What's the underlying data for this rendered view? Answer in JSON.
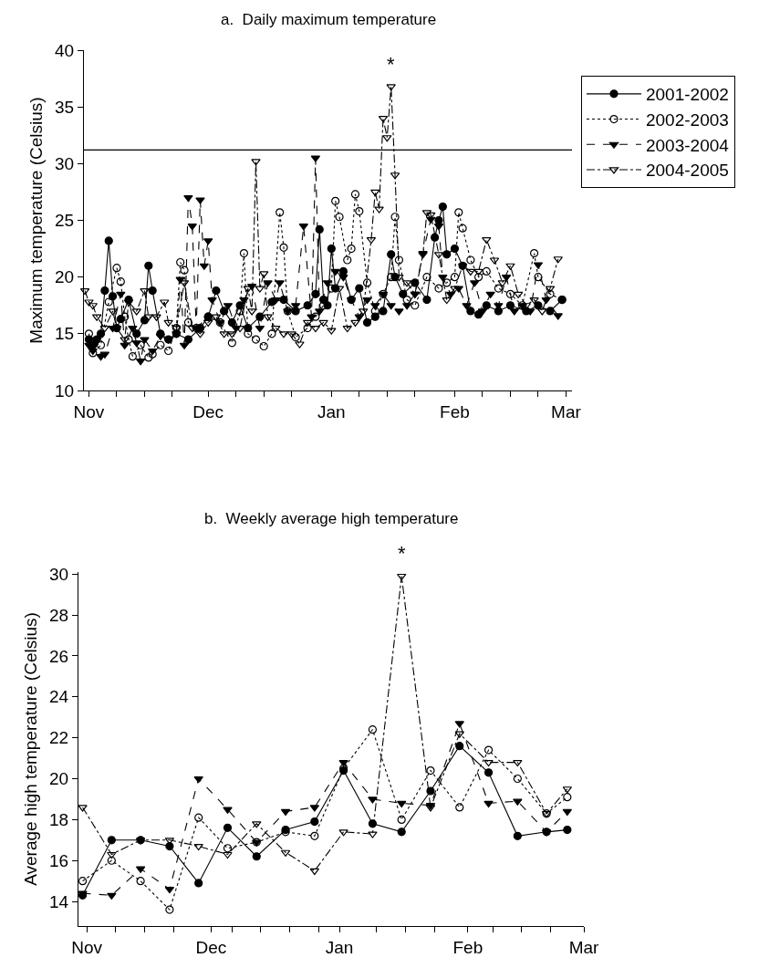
{
  "chart_data": [
    {
      "type": "line",
      "title": "a.  Daily maximum temperature",
      "ylabel": "Maximum temperature (Celsius)",
      "xlim": [
        "2000-10-30T18:00",
        "2001-03-02T12:00"
      ],
      "xticks": [
        {
          "value": "2000-11-01",
          "label": "Nov"
        },
        {
          "value": "2000-11-08",
          "label": null
        },
        {
          "value": "2000-11-15",
          "label": null
        },
        {
          "value": "2000-11-22",
          "label": null
        },
        {
          "value": "2000-12-01",
          "label": "Dec"
        },
        {
          "value": "2000-12-08",
          "label": null
        },
        {
          "value": "2000-12-15",
          "label": null
        },
        {
          "value": "2000-12-22",
          "label": null
        },
        {
          "value": "2001-01-01",
          "label": "Jan"
        },
        {
          "value": "2001-01-08",
          "label": null
        },
        {
          "value": "2001-01-15",
          "label": null
        },
        {
          "value": "2001-01-22",
          "label": null
        },
        {
          "value": "2001-02-01",
          "label": "Feb"
        },
        {
          "value": "2001-02-08",
          "label": null
        },
        {
          "value": "2001-02-15",
          "label": null
        },
        {
          "value": "2001-02-22",
          "label": null
        },
        {
          "value": "2001-03-01",
          "label": "Mar"
        }
      ],
      "ylim": [
        10,
        40
      ],
      "yticks": [
        10,
        15,
        20,
        25,
        30,
        35,
        40
      ],
      "grid": false,
      "legend": "top right",
      "ref_lines": [
        {
          "axis": "y",
          "value": 31.2,
          "color": "#000000",
          "line_style": "solid"
        }
      ],
      "annotations": [
        "*"
      ],
      "series": [
        {
          "name": "2001-2002",
          "color": "#000000",
          "marker": "circle",
          "line_style": "solid",
          "x": [
            "2000-11-01",
            "2000-11-02",
            "2000-11-03",
            "2000-11-04",
            "2000-11-05",
            "2000-11-06",
            "2000-11-07",
            "2000-11-08",
            "2000-11-09",
            "2000-11-11",
            "2000-11-13",
            "2000-11-15",
            "2000-11-16",
            "2000-11-17",
            "2000-11-19",
            "2000-11-21",
            "2000-11-23",
            "2000-11-26",
            "2000-11-29",
            "2000-12-01",
            "2000-12-03",
            "2000-12-05",
            "2000-12-07",
            "2000-12-09",
            "2000-12-11",
            "2000-12-14",
            "2000-12-17",
            "2000-12-20",
            "2000-12-23",
            "2000-12-26",
            "2000-12-28",
            "2000-12-29",
            "2000-12-30",
            "2000-12-31",
            "2001-01-01",
            "2001-01-02",
            "2001-01-04",
            "2001-01-06",
            "2001-01-08",
            "2001-01-10",
            "2001-01-12",
            "2001-01-14",
            "2001-01-16",
            "2001-01-17",
            "2001-01-19",
            "2001-01-22",
            "2001-01-25",
            "2001-01-27",
            "2001-01-28",
            "2001-01-29",
            "2001-01-30",
            "2001-02-01",
            "2001-02-03",
            "2001-02-05",
            "2001-02-07",
            "2001-02-09",
            "2001-02-12",
            "2001-02-15",
            "2001-02-19",
            "2001-02-22",
            "2001-02-25",
            "2001-02-28"
          ],
          "values": [
            14.5,
            14.0,
            14.5,
            15.0,
            18.8,
            23.2,
            18.3,
            15.5,
            16.3,
            18.0,
            15.0,
            16.2,
            21.0,
            18.8,
            15.0,
            14.5,
            15.0,
            14.5,
            15.5,
            16.5,
            18.8,
            17.0,
            16.0,
            17.5,
            15.5,
            16.5,
            17.8,
            18.0,
            17.0,
            17.5,
            18.5,
            24.2,
            18.0,
            17.5,
            22.5,
            19.0,
            20.5,
            18.0,
            19.0,
            16.0,
            16.5,
            17.0,
            22.0,
            20.0,
            18.5,
            19.5,
            18.0,
            23.5,
            25.0,
            26.2,
            22.0,
            22.5,
            21.0,
            17.0,
            16.7,
            17.5,
            17.0,
            17.5,
            17.0,
            17.5,
            17.0,
            18.0
          ]
        },
        {
          "name": "2002-2003",
          "color": "#000000",
          "marker": "circle-open",
          "line_style": "dotted",
          "x": [
            "2000-11-01",
            "2000-11-02",
            "2000-11-04",
            "2000-11-06",
            "2000-11-08",
            "2000-11-09",
            "2000-11-10",
            "2000-11-11",
            "2000-11-12",
            "2000-11-14",
            "2000-11-16",
            "2000-11-17",
            "2000-11-19",
            "2000-11-21",
            "2000-11-23",
            "2000-11-24",
            "2000-11-25",
            "2000-11-26",
            "2000-11-28",
            "2000-12-01",
            "2000-12-04",
            "2000-12-07",
            "2000-12-09",
            "2000-12-10",
            "2000-12-11",
            "2000-12-13",
            "2000-12-15",
            "2000-12-17",
            "2000-12-19",
            "2000-12-20",
            "2000-12-21",
            "2000-12-23",
            "2000-12-26",
            "2000-12-28",
            "2000-12-30",
            "2001-01-01",
            "2001-01-02",
            "2001-01-03",
            "2001-01-05",
            "2001-01-06",
            "2001-01-07",
            "2001-01-08",
            "2001-01-10",
            "2001-01-12",
            "2001-01-14",
            "2001-01-16",
            "2001-01-17",
            "2001-01-18",
            "2001-01-20",
            "2001-01-22",
            "2001-01-25",
            "2001-01-28",
            "2001-01-30",
            "2001-02-01",
            "2001-02-02",
            "2001-02-03",
            "2001-02-05",
            "2001-02-07",
            "2001-02-09",
            "2001-02-12",
            "2001-02-15",
            "2001-02-18",
            "2001-02-21",
            "2001-02-22",
            "2001-02-25",
            "2001-02-28"
          ],
          "values": [
            15.0,
            13.3,
            14.0,
            17.8,
            20.8,
            19.6,
            16.5,
            14.5,
            13.0,
            14.0,
            12.9,
            13.2,
            14.0,
            13.5,
            15.5,
            21.3,
            20.6,
            16.0,
            15.5,
            16.5,
            16.0,
            14.2,
            17.0,
            22.1,
            15.0,
            14.5,
            13.9,
            15.0,
            25.7,
            22.6,
            17.0,
            14.7,
            15.5,
            16.5,
            17.5,
            19.0,
            26.7,
            25.3,
            21.5,
            22.5,
            27.3,
            25.8,
            19.5,
            17.0,
            18.5,
            20.0,
            25.3,
            21.5,
            18.0,
            17.5,
            20.0,
            19.0,
            19.5,
            20.0,
            25.7,
            24.3,
            21.5,
            20.0,
            20.5,
            19.0,
            18.5,
            17.5,
            22.1,
            20.0,
            18.5,
            18.0
          ]
        },
        {
          "name": "2003-2004",
          "color": "#000000",
          "marker": "triangle-down",
          "line_style": "dashed",
          "x": [
            "2000-11-01",
            "2000-11-02",
            "2000-11-03",
            "2000-11-04",
            "2000-11-05",
            "2000-11-07",
            "2000-11-09",
            "2000-11-10",
            "2000-11-12",
            "2000-11-13",
            "2000-11-14",
            "2000-11-15",
            "2000-11-17",
            "2000-11-19",
            "2000-11-21",
            "2000-11-23",
            "2000-11-24",
            "2000-11-25",
            "2000-11-26",
            "2000-11-27",
            "2000-11-28",
            "2000-11-29",
            "2000-11-30",
            "2000-12-01",
            "2000-12-02",
            "2000-12-04",
            "2000-12-06",
            "2000-12-08",
            "2000-12-10",
            "2000-12-12",
            "2000-12-14",
            "2000-12-16",
            "2000-12-18",
            "2000-12-19",
            "2000-12-21",
            "2000-12-23",
            "2000-12-25",
            "2000-12-27",
            "2000-12-28",
            "2000-12-29",
            "2000-12-31",
            "2001-01-02",
            "2001-01-04",
            "2001-01-06",
            "2001-01-08",
            "2001-01-10",
            "2001-01-12",
            "2001-01-14",
            "2001-01-16",
            "2001-01-18",
            "2001-01-20",
            "2001-01-22",
            "2001-01-24",
            "2001-01-26",
            "2001-01-28",
            "2001-01-29",
            "2001-01-31",
            "2001-02-02",
            "2001-02-04",
            "2001-02-06",
            "2001-02-08",
            "2001-02-10",
            "2001-02-12",
            "2001-02-14",
            "2001-02-16",
            "2001-02-18",
            "2001-02-20",
            "2001-02-22",
            "2001-02-24",
            "2001-02-27"
          ],
          "values": [
            14.0,
            13.5,
            14.5,
            13.0,
            13.2,
            15.5,
            18.5,
            14.0,
            15.5,
            14.2,
            12.6,
            14.5,
            13.5,
            14.8,
            14.5,
            15.0,
            19.8,
            14.0,
            27.0,
            24.5,
            15.5,
            26.8,
            21.0,
            23.2,
            18.0,
            16.0,
            17.5,
            15.5,
            18.0,
            19.2,
            15.5,
            19.5,
            18.0,
            19.5,
            17.0,
            17.5,
            24.5,
            16.5,
            30.5,
            17.0,
            19.5,
            20.5,
            20.0,
            18.0,
            16.5,
            18.0,
            17.5,
            18.5,
            17.5,
            17.0,
            17.5,
            18.5,
            22.1,
            25.1,
            24.5,
            20.0,
            18.5,
            19.0,
            17.5,
            19.5,
            17.0,
            18.5,
            17.5,
            20.0,
            17.0,
            17.5,
            17.0,
            21.1,
            18.0,
            16.6
          ]
        },
        {
          "name": "2004-2005",
          "color": "#000000",
          "marker": "triangle-down-open",
          "line_style": "dashdot",
          "x": [
            "2000-10-31",
            "2000-11-01",
            "2000-11-02",
            "2000-11-03",
            "2000-11-05",
            "2000-11-07",
            "2000-11-08",
            "2000-11-10",
            "2000-11-11",
            "2000-11-13",
            "2000-11-15",
            "2000-11-16",
            "2000-11-18",
            "2000-11-20",
            "2000-11-21",
            "2000-11-23",
            "2000-11-25",
            "2000-11-27",
            "2000-11-29",
            "2000-12-01",
            "2000-12-03",
            "2000-12-05",
            "2000-12-07",
            "2000-12-09",
            "2000-12-11",
            "2000-12-12",
            "2000-12-13",
            "2000-12-14",
            "2000-12-15",
            "2000-12-16",
            "2000-12-18",
            "2000-12-20",
            "2000-12-22",
            "2000-12-24",
            "2000-12-26",
            "2000-12-28",
            "2000-12-30",
            "2001-01-01",
            "2001-01-03",
            "2001-01-05",
            "2001-01-07",
            "2001-01-09",
            "2001-01-11",
            "2001-01-12",
            "2001-01-13",
            "2001-01-14",
            "2001-01-15",
            "2001-01-16",
            "2001-01-17",
            "2001-01-18",
            "2001-01-20",
            "2001-01-22",
            "2001-01-24",
            "2001-01-25",
            "2001-01-26",
            "2001-01-28",
            "2001-01-30",
            "2001-02-01",
            "2001-02-03",
            "2001-02-05",
            "2001-02-07",
            "2001-02-09",
            "2001-02-11",
            "2001-02-13",
            "2001-02-15",
            "2001-02-17",
            "2001-02-19",
            "2001-02-21",
            "2001-02-23",
            "2001-02-25",
            "2001-02-27"
          ],
          "values": [
            18.8,
            17.8,
            17.5,
            16.5,
            15.5,
            17.0,
            15.5,
            14.5,
            17.8,
            17.0,
            18.8,
            16.5,
            16.5,
            17.8,
            16.0,
            15.5,
            19.5,
            15.5,
            15.0,
            16.0,
            16.5,
            15.0,
            15.0,
            15.5,
            19.0,
            17.0,
            30.2,
            19.0,
            20.3,
            16.5,
            15.5,
            15.0,
            15.0,
            14.1,
            16.0,
            15.5,
            16.0,
            15.3,
            19.0,
            15.5,
            16.0,
            17.0,
            23.3,
            27.5,
            26.0,
            34.0,
            32.3,
            36.8,
            29.0,
            20.0,
            19.5,
            18.5,
            22.0,
            25.7,
            25.5,
            22.0,
            18.0,
            19.0,
            21.0,
            20.5,
            20.5,
            23.3,
            21.5,
            19.5,
            21.0,
            18.5,
            17.5,
            18.0,
            17.0,
            19.0,
            21.6
          ]
        }
      ]
    },
    {
      "type": "line",
      "title": "b.  Weekly average high temperature",
      "ylabel": "Average high temperature (Celsius)",
      "x": [
        "2000-10-31",
        "2000-11-07",
        "2000-11-14",
        "2000-11-21",
        "2000-11-28",
        "2000-12-05",
        "2000-12-12",
        "2000-12-19",
        "2000-12-26",
        "2001-01-02",
        "2001-01-09",
        "2001-01-16",
        "2001-01-23",
        "2001-01-30",
        "2001-02-06",
        "2001-02-13",
        "2001-02-20",
        "2001-02-25"
      ],
      "xlim": [
        "2000-10-30",
        "2001-03-01"
      ],
      "xticks": [
        {
          "value": "2000-11-01",
          "label": "Nov"
        },
        {
          "value": "2000-11-08",
          "label": null
        },
        {
          "value": "2000-11-15",
          "label": null
        },
        {
          "value": "2000-11-22",
          "label": null
        },
        {
          "value": "2000-12-01",
          "label": "Dec"
        },
        {
          "value": "2000-12-06",
          "label": null
        },
        {
          "value": "2000-12-13",
          "label": null
        },
        {
          "value": "2000-12-20",
          "label": null
        },
        {
          "value": "2000-12-27",
          "label": null
        },
        {
          "value": "2001-01-01",
          "label": "Jan"
        },
        {
          "value": "2001-01-10",
          "label": null
        },
        {
          "value": "2001-01-17",
          "label": null
        },
        {
          "value": "2001-01-24",
          "label": null
        },
        {
          "value": "2001-02-01",
          "label": "Feb"
        },
        {
          "value": "2001-02-07",
          "label": null
        },
        {
          "value": "2001-02-14",
          "label": null
        },
        {
          "value": "2001-02-21",
          "label": null
        },
        {
          "value": "2001-03-01",
          "label": "Mar"
        }
      ],
      "ylim": [
        12.8,
        30.1
      ],
      "yticks": [
        14,
        16,
        18,
        20,
        22,
        24,
        26,
        28,
        30
      ],
      "grid": false,
      "annotations": [
        "*"
      ],
      "series": [
        {
          "color": "#000000",
          "marker": "circle",
          "line_style": "solid",
          "values": [
            14.3,
            17.0,
            17.0,
            16.7,
            14.9,
            17.6,
            16.2,
            17.5,
            17.9,
            20.4,
            17.8,
            17.4,
            19.4,
            21.6,
            20.3,
            17.2,
            17.4,
            17.5
          ]
        },
        {
          "color": "#000000",
          "marker": "circle-open",
          "line_style": "dotted",
          "values": [
            15.0,
            16.0,
            15.0,
            13.6,
            18.1,
            16.6,
            16.9,
            17.4,
            17.2,
            20.5,
            22.4,
            18.0,
            20.4,
            18.6,
            21.4,
            20.0,
            18.3,
            19.1
          ]
        },
        {
          "color": "#000000",
          "marker": "triangle-down",
          "line_style": "dashed",
          "values": [
            14.4,
            14.3,
            15.6,
            14.6,
            20.0,
            18.5,
            16.9,
            18.4,
            18.6,
            20.8,
            19.0,
            18.8,
            18.7,
            22.7,
            18.8,
            18.9,
            17.4,
            18.4
          ]
        },
        {
          "color": "#000000",
          "marker": "triangle-down-open",
          "line_style": "dashdot",
          "values": [
            18.6,
            16.3,
            17.0,
            17.0,
            16.7,
            16.3,
            17.8,
            16.4,
            15.5,
            17.4,
            17.3,
            29.9,
            18.6,
            22.2,
            20.8,
            20.8,
            18.3,
            19.5
          ]
        }
      ]
    }
  ]
}
